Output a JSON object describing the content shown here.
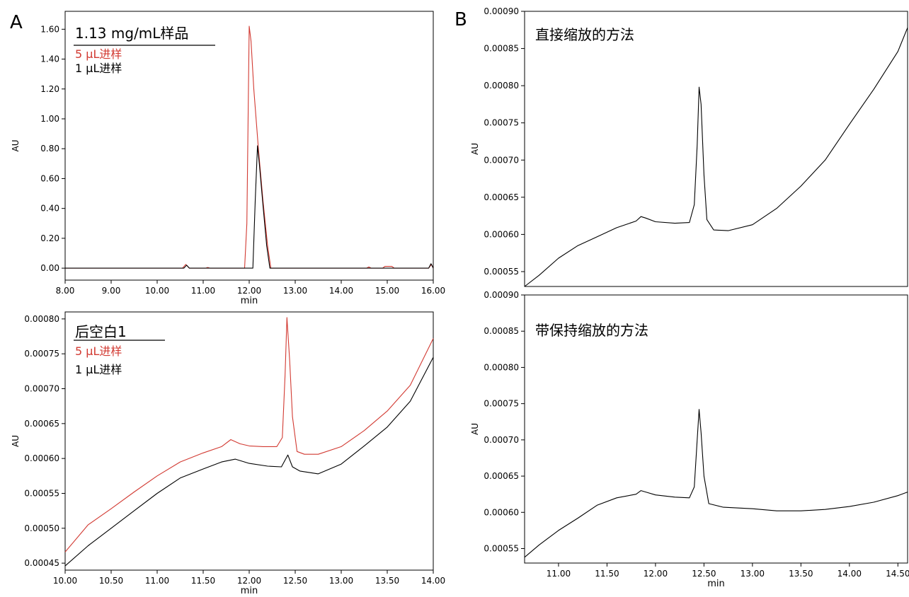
{
  "panel_labels": {
    "a": "A",
    "b": "B"
  },
  "colors": {
    "red_trace": "#d23a32",
    "black_trace": "#000000",
    "frame": "#000000"
  },
  "chart_data": [
    {
      "id": "a-top",
      "type": "line",
      "title": "1.13 mg/mL样品",
      "xlabel": "min",
      "ylabel": "AU",
      "xlim": [
        8.0,
        16.0
      ],
      "ylim": [
        -0.08,
        1.72
      ],
      "x_ticks": [
        "8.00",
        "9.00",
        "10.00",
        "11.00",
        "12.00",
        "13.00",
        "14.00",
        "15.00",
        "16.00"
      ],
      "y_ticks": [
        "0.00",
        "0.20",
        "0.40",
        "0.60",
        "0.80",
        "1.00",
        "1.20",
        "1.40",
        "1.60"
      ],
      "legend_position": "top-left",
      "series": [
        {
          "name": "5 µL进样",
          "color": "#d23a32",
          "points": [
            [
              8.0,
              0.0
            ],
            [
              10.55,
              0.0
            ],
            [
              10.62,
              0.025
            ],
            [
              10.7,
              0.0
            ],
            [
              11.05,
              0.0
            ],
            [
              11.1,
              0.005
            ],
            [
              11.15,
              0.0
            ],
            [
              11.9,
              0.0
            ],
            [
              11.95,
              0.3
            ],
            [
              11.98,
              1.1
            ],
            [
              12.0,
              1.62
            ],
            [
              12.04,
              1.52
            ],
            [
              12.1,
              1.2
            ],
            [
              12.2,
              0.8
            ],
            [
              12.3,
              0.45
            ],
            [
              12.4,
              0.15
            ],
            [
              12.47,
              0.0
            ],
            [
              14.55,
              0.0
            ],
            [
              14.6,
              0.008
            ],
            [
              14.65,
              0.0
            ],
            [
              14.9,
              0.0
            ],
            [
              14.95,
              0.012
            ],
            [
              15.1,
              0.012
            ],
            [
              15.15,
              0.0
            ],
            [
              15.9,
              0.0
            ],
            [
              15.96,
              0.025
            ],
            [
              16.0,
              0.0
            ]
          ]
        },
        {
          "name": "1 µL进样",
          "color": "#000000",
          "points": [
            [
              8.0,
              0.0
            ],
            [
              10.58,
              0.0
            ],
            [
              10.64,
              0.02
            ],
            [
              10.7,
              0.0
            ],
            [
              12.08,
              0.0
            ],
            [
              12.13,
              0.45
            ],
            [
              12.18,
              0.82
            ],
            [
              12.22,
              0.7
            ],
            [
              12.3,
              0.42
            ],
            [
              12.38,
              0.15
            ],
            [
              12.45,
              0.0
            ],
            [
              15.9,
              0.0
            ],
            [
              15.95,
              0.03
            ],
            [
              16.0,
              0.0
            ]
          ]
        }
      ]
    },
    {
      "id": "a-bottom",
      "type": "line",
      "title": "后空白1",
      "xlabel": "min",
      "ylabel": "AU",
      "xlim": [
        10.0,
        14.0
      ],
      "ylim": [
        0.00044,
        0.00081
      ],
      "x_ticks": [
        "10.00",
        "10.50",
        "11.00",
        "11.50",
        "12.00",
        "12.50",
        "13.00",
        "13.50",
        "14.00"
      ],
      "y_ticks": [
        "0.00045",
        "0.00050",
        "0.00055",
        "0.00060",
        "0.00065",
        "0.00070",
        "0.00075",
        "0.00080"
      ],
      "legend_position": "top-left",
      "series": [
        {
          "name": "5 µL进样",
          "color": "#d23a32",
          "points": [
            [
              10.0,
              0.000466
            ],
            [
              10.25,
              0.000505
            ],
            [
              10.5,
              0.000528
            ],
            [
              10.75,
              0.000552
            ],
            [
              11.0,
              0.000575
            ],
            [
              11.25,
              0.000595
            ],
            [
              11.5,
              0.000608
            ],
            [
              11.7,
              0.000617
            ],
            [
              11.8,
              0.000627
            ],
            [
              11.9,
              0.000621
            ],
            [
              12.0,
              0.000618
            ],
            [
              12.15,
              0.000617
            ],
            [
              12.3,
              0.000617
            ],
            [
              12.36,
              0.00063
            ],
            [
              12.39,
              0.00072
            ],
            [
              12.41,
              0.000802
            ],
            [
              12.44,
              0.00074
            ],
            [
              12.47,
              0.00066
            ],
            [
              12.52,
              0.00061
            ],
            [
              12.6,
              0.000606
            ],
            [
              12.75,
              0.000606
            ],
            [
              13.0,
              0.000617
            ],
            [
              13.25,
              0.00064
            ],
            [
              13.5,
              0.000668
            ],
            [
              13.75,
              0.000705
            ],
            [
              14.0,
              0.000772
            ]
          ]
        },
        {
          "name": "1 µL进样",
          "color": "#000000",
          "points": [
            [
              10.0,
              0.000446
            ],
            [
              10.25,
              0.000475
            ],
            [
              10.5,
              0.0005
            ],
            [
              10.75,
              0.000525
            ],
            [
              11.0,
              0.00055
            ],
            [
              11.25,
              0.000572
            ],
            [
              11.5,
              0.000585
            ],
            [
              11.7,
              0.000595
            ],
            [
              11.85,
              0.000599
            ],
            [
              12.0,
              0.000593
            ],
            [
              12.2,
              0.000589
            ],
            [
              12.35,
              0.000588
            ],
            [
              12.42,
              0.000605
            ],
            [
              12.47,
              0.000588
            ],
            [
              12.55,
              0.000582
            ],
            [
              12.75,
              0.000578
            ],
            [
              13.0,
              0.000592
            ],
            [
              13.25,
              0.000618
            ],
            [
              13.5,
              0.000645
            ],
            [
              13.75,
              0.000682
            ],
            [
              14.0,
              0.000745
            ]
          ]
        }
      ]
    },
    {
      "id": "b-top",
      "type": "line",
      "title": "直接缩放的方法",
      "xlabel": "",
      "ylabel": "AU",
      "xlim": [
        10.65,
        14.6
      ],
      "ylim": [
        0.00053,
        0.0009
      ],
      "y_ticks": [
        "0.00055",
        "0.00060",
        "0.00065",
        "0.00070",
        "0.00075",
        "0.00080",
        "0.00085",
        "0.00090"
      ],
      "series": [
        {
          "color": "#000000",
          "points": [
            [
              10.65,
              0.00053
            ],
            [
              10.8,
              0.000545
            ],
            [
              11.0,
              0.000568
            ],
            [
              11.2,
              0.000585
            ],
            [
              11.4,
              0.000597
            ],
            [
              11.6,
              0.000609
            ],
            [
              11.8,
              0.000618
            ],
            [
              11.85,
              0.000624
            ],
            [
              11.9,
              0.000622
            ],
            [
              12.0,
              0.000617
            ],
            [
              12.2,
              0.000615
            ],
            [
              12.35,
              0.000616
            ],
            [
              12.4,
              0.00064
            ],
            [
              12.43,
              0.00072
            ],
            [
              12.45,
              0.000798
            ],
            [
              12.47,
              0.000775
            ],
            [
              12.5,
              0.00068
            ],
            [
              12.53,
              0.00062
            ],
            [
              12.6,
              0.000606
            ],
            [
              12.75,
              0.000605
            ],
            [
              13.0,
              0.000613
            ],
            [
              13.25,
              0.000635
            ],
            [
              13.5,
              0.000665
            ],
            [
              13.75,
              0.0007
            ],
            [
              14.0,
              0.000748
            ],
            [
              14.25,
              0.000795
            ],
            [
              14.5,
              0.000846
            ],
            [
              14.6,
              0.000878
            ]
          ]
        }
      ]
    },
    {
      "id": "b-bottom",
      "type": "line",
      "title": "带保持缩放的方法",
      "xlabel": "min",
      "ylabel": "AU",
      "xlim": [
        10.65,
        14.6
      ],
      "ylim": [
        0.00053,
        0.0009
      ],
      "x_ticks": [
        "11.00",
        "11.50",
        "12.00",
        "12.50",
        "13.00",
        "13.50",
        "14.00",
        "14.50"
      ],
      "y_ticks": [
        "0.00055",
        "0.00060",
        "0.00065",
        "0.00070",
        "0.00075",
        "0.00080",
        "0.00085",
        "0.00090"
      ],
      "series": [
        {
          "color": "#000000",
          "points": [
            [
              10.65,
              0.000538
            ],
            [
              10.8,
              0.000555
            ],
            [
              11.0,
              0.000575
            ],
            [
              11.2,
              0.000592
            ],
            [
              11.4,
              0.00061
            ],
            [
              11.6,
              0.00062
            ],
            [
              11.8,
              0.000625
            ],
            [
              11.85,
              0.00063
            ],
            [
              11.9,
              0.000628
            ],
            [
              12.0,
              0.000624
            ],
            [
              12.2,
              0.000621
            ],
            [
              12.35,
              0.00062
            ],
            [
              12.4,
              0.000635
            ],
            [
              12.43,
              0.0007
            ],
            [
              12.45,
              0.000742
            ],
            [
              12.47,
              0.00071
            ],
            [
              12.5,
              0.00065
            ],
            [
              12.55,
              0.000612
            ],
            [
              12.7,
              0.000607
            ],
            [
              13.0,
              0.000605
            ],
            [
              13.25,
              0.000602
            ],
            [
              13.5,
              0.000602
            ],
            [
              13.75,
              0.000604
            ],
            [
              14.0,
              0.000608
            ],
            [
              14.25,
              0.000614
            ],
            [
              14.5,
              0.000623
            ],
            [
              14.6,
              0.000628
            ]
          ]
        }
      ]
    }
  ]
}
